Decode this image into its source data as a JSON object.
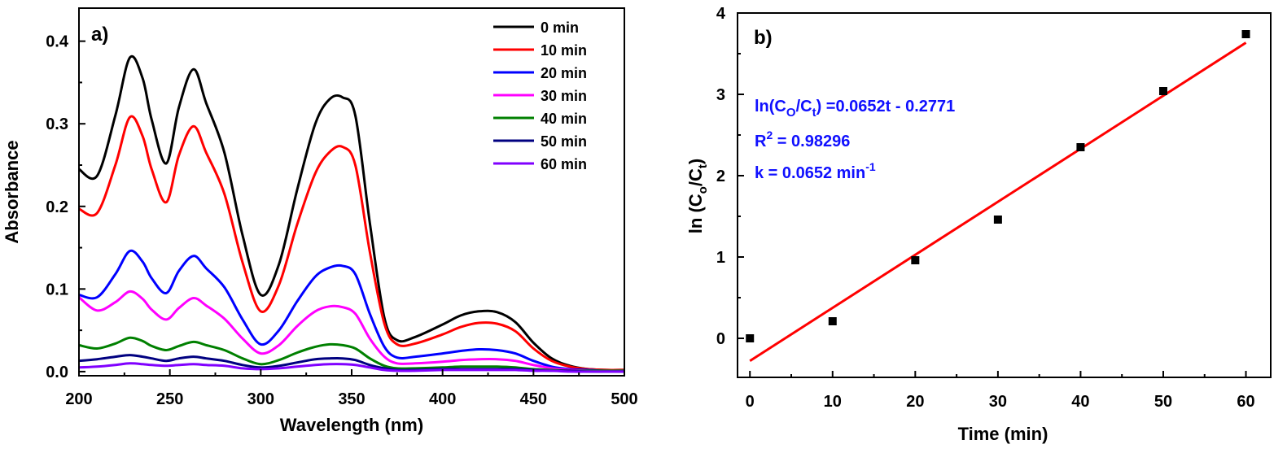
{
  "chart_data": [
    {
      "type": "line",
      "panel_label": "a)",
      "xlabel": "Wavelength (nm)",
      "ylabel": "Absorbance",
      "xlim": [
        200,
        500
      ],
      "ylim": [
        -0.005,
        0.44
      ],
      "xticks": [
        200,
        250,
        300,
        350,
        400,
        450,
        500
      ],
      "yticks": [
        0.0,
        0.1,
        0.2,
        0.3,
        0.4
      ],
      "ytick_labels": [
        "0.0",
        "0.1",
        "0.2",
        "0.3",
        "0.4"
      ],
      "grid": false,
      "legend_position": "top-right",
      "x": [
        200,
        210,
        220,
        228,
        235,
        240,
        248,
        255,
        263,
        270,
        280,
        290,
        300,
        310,
        320,
        330,
        338,
        345,
        352,
        360,
        368,
        375,
        385,
        400,
        410,
        420,
        430,
        440,
        450,
        460,
        470,
        480,
        490,
        500
      ],
      "series": [
        {
          "name": "0 min",
          "color": "#000000",
          "values": [
            0.245,
            0.237,
            0.31,
            0.38,
            0.355,
            0.305,
            0.252,
            0.32,
            0.366,
            0.325,
            0.265,
            0.165,
            0.093,
            0.13,
            0.22,
            0.3,
            0.33,
            0.332,
            0.31,
            0.18,
            0.065,
            0.038,
            0.042,
            0.057,
            0.068,
            0.073,
            0.072,
            0.06,
            0.035,
            0.016,
            0.007,
            0.003,
            0.002,
            0.002
          ]
        },
        {
          "name": "10 min",
          "color": "#ff0000",
          "values": [
            0.197,
            0.192,
            0.25,
            0.308,
            0.285,
            0.245,
            0.205,
            0.262,
            0.297,
            0.265,
            0.215,
            0.132,
            0.073,
            0.105,
            0.178,
            0.24,
            0.266,
            0.272,
            0.25,
            0.145,
            0.058,
            0.033,
            0.034,
            0.045,
            0.054,
            0.059,
            0.058,
            0.049,
            0.028,
            0.013,
            0.006,
            0.003,
            0.002,
            0.002
          ]
        },
        {
          "name": "20 min",
          "color": "#0000ff",
          "values": [
            0.093,
            0.09,
            0.118,
            0.146,
            0.133,
            0.113,
            0.095,
            0.122,
            0.14,
            0.125,
            0.102,
            0.063,
            0.033,
            0.05,
            0.085,
            0.115,
            0.126,
            0.128,
            0.118,
            0.07,
            0.03,
            0.017,
            0.018,
            0.022,
            0.025,
            0.027,
            0.026,
            0.022,
            0.013,
            0.006,
            0.003,
            0.002,
            0.001,
            0.001
          ]
        },
        {
          "name": "30 min",
          "color": "#ff00ff",
          "values": [
            0.09,
            0.074,
            0.084,
            0.097,
            0.088,
            0.075,
            0.063,
            0.077,
            0.089,
            0.08,
            0.064,
            0.04,
            0.022,
            0.032,
            0.055,
            0.073,
            0.079,
            0.078,
            0.07,
            0.04,
            0.018,
            0.01,
            0.01,
            0.012,
            0.014,
            0.015,
            0.015,
            0.013,
            0.008,
            0.004,
            0.002,
            0.001,
            0.001,
            0.001
          ]
        },
        {
          "name": "40 min",
          "color": "#008000",
          "values": [
            0.032,
            0.028,
            0.034,
            0.041,
            0.037,
            0.031,
            0.026,
            0.031,
            0.036,
            0.032,
            0.026,
            0.016,
            0.009,
            0.014,
            0.023,
            0.03,
            0.033,
            0.032,
            0.028,
            0.016,
            0.007,
            0.004,
            0.004,
            0.005,
            0.006,
            0.006,
            0.006,
            0.005,
            0.003,
            0.002,
            0.001,
            0.001,
            0.001,
            0.001
          ]
        },
        {
          "name": "50 min",
          "color": "#000080",
          "values": [
            0.013,
            0.015,
            0.018,
            0.02,
            0.018,
            0.016,
            0.013,
            0.016,
            0.018,
            0.016,
            0.013,
            0.008,
            0.005,
            0.007,
            0.011,
            0.015,
            0.016,
            0.016,
            0.014,
            0.008,
            0.004,
            0.002,
            0.002,
            0.003,
            0.003,
            0.003,
            0.003,
            0.003,
            0.002,
            0.001,
            0.001,
            0.0,
            0.0,
            0.0
          ]
        },
        {
          "name": "60 min",
          "color": "#8000ff",
          "values": [
            0.005,
            0.006,
            0.008,
            0.01,
            0.009,
            0.008,
            0.007,
            0.008,
            0.009,
            0.008,
            0.007,
            0.004,
            0.003,
            0.004,
            0.006,
            0.008,
            0.009,
            0.009,
            0.008,
            0.005,
            0.002,
            0.001,
            0.001,
            0.002,
            0.002,
            0.002,
            0.002,
            0.002,
            0.001,
            0.001,
            0.0,
            0.0,
            0.0,
            0.0
          ]
        }
      ]
    },
    {
      "type": "scatter",
      "panel_label": "b)",
      "xlabel": "Time (min)",
      "ylabel": "ln (Co/Ct)",
      "ylabel_parts": {
        "a": "ln (C",
        "b": "o",
        "c": "/C",
        "d": "t",
        "e": ")"
      },
      "xlim": [
        -1.5,
        63
      ],
      "ylim": [
        -0.48,
        4.0
      ],
      "xticks": [
        0,
        10,
        20,
        30,
        40,
        50,
        60
      ],
      "yticks": [
        0,
        1,
        2,
        3,
        4
      ],
      "grid": false,
      "marker_color": "#000000",
      "points": {
        "x": [
          0,
          10,
          20,
          30,
          40,
          50,
          60
        ],
        "y": [
          0.0,
          0.21,
          0.96,
          1.46,
          2.35,
          3.04,
          3.74
        ]
      },
      "fit_line": {
        "slope": 0.0652,
        "intercept": -0.2771,
        "x_range": [
          0,
          60
        ],
        "color": "#ff0000"
      },
      "annotation_color": "#1010ff",
      "annotations": {
        "equation": {
          "a": "ln(C",
          "b": "O",
          "c": "/C",
          "d": "t",
          "e": ") =0.0652t - 0.2771"
        },
        "r2": {
          "a": "R",
          "b": "2",
          "c": " = 0.98296"
        },
        "k": {
          "a": "k = 0.0652 min",
          "b": "-1"
        }
      }
    }
  ]
}
